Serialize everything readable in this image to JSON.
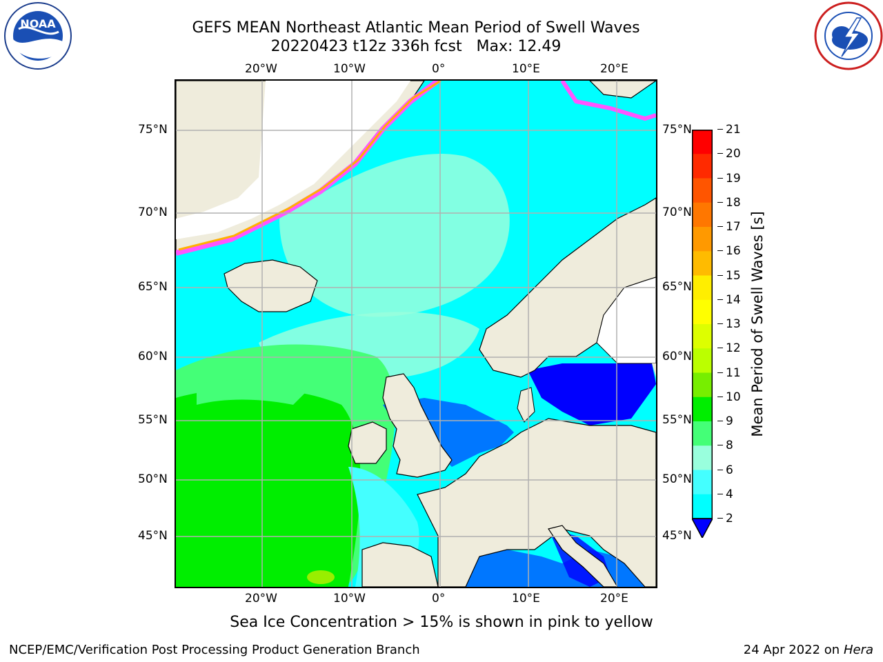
{
  "header": {
    "title_line1": "GEFS MEAN Northeast Atlantic Mean Period of Swell Waves",
    "title_line2": "20220423 t12z 336h fcst   Max: 12.49"
  },
  "logos": {
    "noaa_text": "NOAA",
    "noaa_ring": "NATIONAL OCEANIC AND ATMOSPHERIC ADMINISTRATION · U.S. DEPARTMENT OF COMMERCE",
    "nws_ring": "NATIONAL WEATHER SERVICE"
  },
  "map": {
    "lon_labels": [
      "20°W",
      "10°W",
      "0°",
      "10°E",
      "20°E"
    ],
    "lat_labels": [
      "75°N",
      "70°N",
      "65°N",
      "60°N",
      "55°N",
      "50°N",
      "45°N"
    ],
    "land_color": "#efecdc",
    "ice_colors": [
      "#ff55ff",
      "#ffb000",
      "#ffff40"
    ]
  },
  "colorbar": {
    "title": "Mean Period of Swell Waves [s]",
    "ticks": [
      "21",
      "20",
      "19",
      "18",
      "17",
      "16",
      "15",
      "14",
      "13",
      "12",
      "11",
      "10",
      "9",
      "8",
      "6",
      "4",
      "2"
    ],
    "colors": [
      "#ff0000",
      "#ff2a00",
      "#ff5500",
      "#ff7700",
      "#ff9900",
      "#ffbb00",
      "#ffee00",
      "#ffff00",
      "#ddff00",
      "#bbff00",
      "#77ee00",
      "#00ee00",
      "#44ff77",
      "#99ffdd",
      "#44ffff",
      "#00ffff",
      "#0077ff",
      "#0000ff"
    ]
  },
  "footer": {
    "note": "Sea Ice Concentration > 15% is shown in pink to yellow",
    "left": "NCEP/EMC/Verification Post Processing Product Generation Branch",
    "date": "24 Apr 2022 on ",
    "machine": "Hera"
  }
}
